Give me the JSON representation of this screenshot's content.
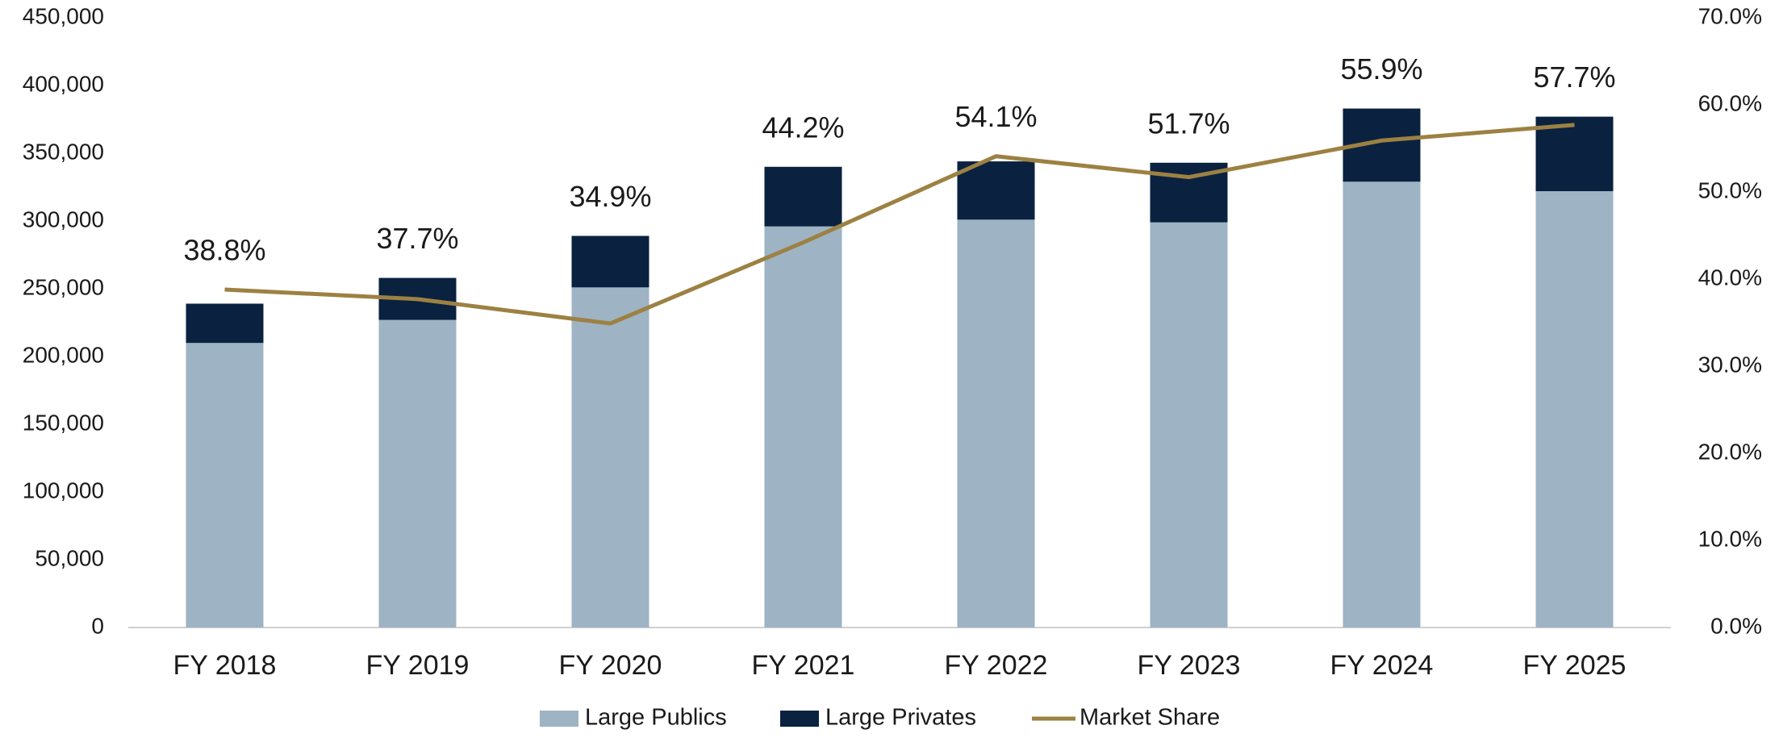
{
  "chart_data": {
    "type": "bar-line",
    "categories": [
      "FY 2018",
      "FY 2019",
      "FY 2020",
      "FY 2021",
      "FY 2022",
      "FY 2023",
      "FY 2024",
      "FY 2025"
    ],
    "series": [
      {
        "name": "Large Publics",
        "color": "#9eb3c4",
        "values": [
          210000,
          227000,
          251000,
          296000,
          301000,
          299000,
          329000,
          322000
        ]
      },
      {
        "name": "Large Privates",
        "color": "#0a2240",
        "values": [
          29000,
          31000,
          38000,
          44000,
          43000,
          44000,
          54000,
          55000
        ]
      },
      {
        "name": "Market Share",
        "color": "#9c8142",
        "axis": "y2",
        "values": [
          38.8,
          37.7,
          34.9,
          44.2,
          54.1,
          51.7,
          55.9,
          57.7
        ],
        "value_labels": [
          "38.8%",
          "37.7%",
          "34.9%",
          "44.2%",
          "54.1%",
          "51.7%",
          "55.9%",
          "57.7%"
        ]
      }
    ],
    "ylim": [
      0,
      450000
    ],
    "yticks": [
      0,
      {
        "value": 50000,
        "label": "50,000"
      },
      {
        "value": 100000,
        "label": "100,000"
      },
      {
        "value": 150000,
        "label": "150,000"
      },
      {
        "value": 200000,
        "label": "200,000"
      },
      {
        "value": 250000,
        "label": "250,000"
      },
      {
        "value": 300000,
        "label": "300,000"
      },
      {
        "value": 350000,
        "label": "350,000"
      },
      {
        "value": 400000,
        "label": "400,000"
      },
      {
        "value": 450000,
        "label": "450,000"
      }
    ],
    "y2lim": [
      0,
      70
    ],
    "y2ticks": [
      {
        "value": 0,
        "label": "0.0%"
      },
      {
        "value": 10,
        "label": "10.0%"
      },
      {
        "value": 20,
        "label": "20.0%"
      },
      {
        "value": 30,
        "label": "30.0%"
      },
      {
        "value": 40,
        "label": "40.0%"
      },
      {
        "value": 50,
        "label": "50.0%"
      },
      {
        "value": 60,
        "label": "60.0%"
      },
      {
        "value": 70,
        "label": "70.0%"
      }
    ],
    "stacked": true,
    "grid": false,
    "legend": "bottom"
  }
}
